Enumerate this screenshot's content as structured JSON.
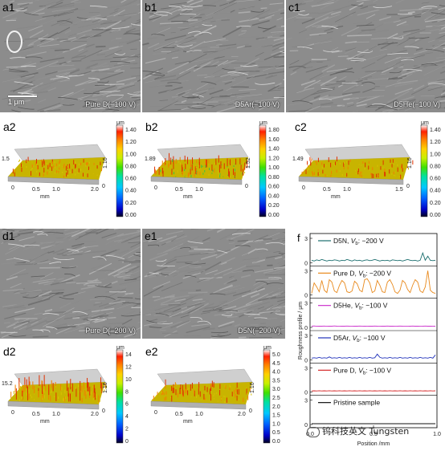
{
  "sem_panels": [
    {
      "id": "a1",
      "label": "a1",
      "caption": "Pure D(−100 V)",
      "scale": "1 μm"
    },
    {
      "id": "b1",
      "label": "b1",
      "caption": "D5Ar(−100 V)"
    },
    {
      "id": "c1",
      "label": "c1",
      "caption": "D5He(−100 V)"
    },
    {
      "id": "d1",
      "label": "d1",
      "caption": "Pure D(−200 V)"
    },
    {
      "id": "e1",
      "label": "e1",
      "caption": "D5N(−200 V)"
    }
  ],
  "maps": [
    {
      "id": "a2",
      "label": "a2",
      "height_label": "1.5",
      "axis_mm": "mm",
      "axis_x": [
        "0.5",
        "1.0",
        "2.0"
      ],
      "axis_y": "1.16",
      "axis_zero": "0",
      "axis_left_zero": "0",
      "cbar_unit": "μm",
      "cbar_ticks": [
        "1.40",
        "1.20",
        "1.00",
        "0.80",
        "0.60",
        "0.40",
        "0.20",
        "0.00"
      ]
    },
    {
      "id": "b2",
      "label": "b2",
      "height_label": "1.89",
      "axis_mm": "mm",
      "axis_x": [
        "0.5",
        "1.0"
      ],
      "axis_y": "1.52",
      "axis_zero": "0",
      "axis_left_zero": "0",
      "cbar_unit": "μm",
      "cbar_ticks": [
        "1.80",
        "1.60",
        "1.40",
        "1.20",
        "1.00",
        "0.80",
        "0.60",
        "0.40",
        "0.20",
        "0.00"
      ]
    },
    {
      "id": "c2",
      "label": "c2",
      "height_label": "1.49",
      "axis_mm": "mm",
      "axis_x": [
        "0.5",
        "1.0",
        "1.5"
      ],
      "axis_y": "1.16",
      "axis_zero": "0",
      "axis_left_zero": "0",
      "cbar_unit": "μm",
      "cbar_ticks": [
        "1.40",
        "1.20",
        "1.00",
        "0.80",
        "0.60",
        "0.40",
        "0.20",
        "0.00"
      ]
    },
    {
      "id": "d2",
      "label": "d2",
      "height_label": "15.2",
      "axis_mm": "mm",
      "axis_x": [
        "0.5",
        "1.0",
        "2.0"
      ],
      "axis_y": "1.16",
      "axis_zero": "0",
      "axis_left_zero": "0",
      "cbar_unit": "μm",
      "cbar_ticks": [
        "14",
        "12",
        "10",
        "8",
        "6",
        "4",
        "2",
        "0"
      ]
    },
    {
      "id": "e2",
      "label": "e2",
      "height_label": "",
      "axis_mm": "mm",
      "axis_x": [
        "0.5",
        "1.0",
        "2.0"
      ],
      "axis_y": "1.16",
      "axis_zero": "0",
      "axis_left_zero": "0",
      "cbar_unit": "μm",
      "cbar_ticks": [
        "5.0",
        "4.5",
        "4.0",
        "3.5",
        "3.0",
        "2.5",
        "2.0",
        "1.5",
        "1.0",
        "0.5",
        "0.0"
      ]
    }
  ],
  "chart_data": {
    "type": "line",
    "panel_label": "f",
    "xlabel": "Position /mm",
    "ylabel": "Roughness profile / μm",
    "xlim": [
      0,
      1.0
    ],
    "x_ticks": [
      "0.0",
      "0.5",
      "1.0"
    ],
    "y_ticks": [
      "0",
      "3"
    ],
    "series": [
      {
        "name": "D5N, Vb: −200 V",
        "label_main": "D5N, ",
        "label_v": "V",
        "label_sub": "b",
        "label_rest": ": −200 V",
        "color": "#1b6e6e",
        "ylim": [
          0,
          3
        ],
        "y": [
          0.3,
          0.2,
          0.35,
          0.25,
          0.4,
          0.3,
          0.2,
          0.3,
          0.25,
          0.35,
          0.3,
          0.2,
          0.3,
          0.25,
          0.4,
          0.3,
          0.2,
          0.35,
          0.25,
          0.3,
          0.2,
          0.3,
          0.35,
          0.25,
          0.3,
          0.4,
          0.3,
          0.2,
          0.3,
          0.25,
          0.3,
          0.2,
          0.35,
          0.3,
          0.25,
          0.3,
          0.2,
          0.3,
          0.4,
          0.3,
          0.25,
          0.3,
          0.2,
          0.3,
          1.2,
          0.3,
          0.8,
          0.3,
          0.25,
          0.3
        ]
      },
      {
        "name": "Pure D, Vb: −200 V",
        "label_main": "Pure D, ",
        "label_v": "V",
        "label_sub": "b",
        "label_rest": ": −200 V",
        "color": "#e8891c",
        "ylim": [
          0,
          3
        ],
        "y": [
          0.2,
          1.5,
          1.0,
          0.4,
          1.8,
          0.6,
          0.3,
          1.9,
          1.6,
          0.5,
          0.3,
          1.2,
          1.8,
          1.5,
          0.4,
          0.3,
          0.5,
          1.7,
          1.4,
          0.6,
          0.4,
          1.9,
          2.0,
          1.5,
          0.3,
          0.5,
          1.8,
          1.2,
          0.4,
          0.3,
          1.6,
          1.9,
          1.3,
          0.4,
          0.2,
          0.6,
          1.8,
          1.5,
          0.7,
          0.3,
          1.2,
          1.9,
          1.6,
          0.5,
          0.3,
          1.0,
          3.0,
          0.6,
          0.3,
          0.2
        ]
      },
      {
        "name": "D5He, Vb: −100 V",
        "label_main": "D5He, ",
        "label_v": "V",
        "label_sub": "b",
        "label_rest": ": −100 V",
        "color": "#cc33cc",
        "ylim": [
          0,
          3
        ],
        "y": [
          0.15,
          0.18,
          0.14,
          0.16,
          0.15,
          0.17,
          0.14,
          0.16,
          0.15,
          0.18,
          0.15,
          0.14,
          0.16,
          0.15,
          0.17,
          0.15,
          0.14,
          0.16,
          0.15,
          0.17,
          0.16,
          0.15,
          0.14,
          0.16,
          0.15,
          0.17,
          0.15,
          0.14,
          0.16,
          0.15,
          0.17,
          0.15,
          0.16,
          0.14,
          0.15,
          0.17,
          0.15,
          0.14,
          0.16,
          0.15,
          0.17,
          0.15,
          0.16,
          0.14,
          0.15,
          0.17,
          0.15,
          0.16,
          0.14,
          0.15
        ]
      },
      {
        "name": "D5Ar, Vb: −100 V",
        "label_main": "D5Ar, ",
        "label_v": "V",
        "label_sub": "b",
        "label_rest": ": −100 V",
        "color": "#2233bb",
        "ylim": [
          0,
          3
        ],
        "y": [
          0.2,
          0.25,
          0.2,
          0.3,
          0.2,
          0.25,
          0.2,
          0.35,
          0.2,
          0.25,
          0.2,
          0.3,
          0.2,
          0.25,
          0.2,
          0.3,
          0.2,
          0.25,
          0.2,
          0.3,
          0.2,
          0.25,
          0.2,
          0.3,
          0.2,
          0.25,
          0.7,
          0.3,
          0.2,
          0.25,
          0.2,
          0.3,
          0.2,
          0.25,
          0.2,
          0.3,
          0.2,
          0.25,
          0.2,
          0.3,
          0.2,
          0.25,
          0.2,
          0.3,
          0.2,
          0.25,
          0.2,
          0.3,
          0.2,
          0.6
        ]
      },
      {
        "name": "Pure D, Vb: −100 V",
        "label_main": "Pure D, ",
        "label_v": "V",
        "label_sub": "b",
        "label_rest": ": −100 V",
        "color": "#d62728",
        "ylim": [
          0,
          3
        ],
        "y": [
          0.15,
          0.16,
          0.15,
          0.17,
          0.15,
          0.16,
          0.15,
          0.17,
          0.15,
          0.16,
          0.15,
          0.17,
          0.15,
          0.16,
          0.15,
          0.17,
          0.15,
          0.16,
          0.15,
          0.17,
          0.15,
          0.16,
          0.15,
          0.17,
          0.15,
          0.16,
          0.15,
          0.17,
          0.15,
          0.16,
          0.15,
          0.17,
          0.15,
          0.16,
          0.15,
          0.17,
          0.15,
          0.16,
          0.15,
          0.17,
          0.15,
          0.16,
          0.15,
          0.17,
          0.15,
          0.16,
          0.15,
          0.17,
          0.15,
          0.16
        ]
      },
      {
        "name": "Pristine sample",
        "label_main": "Pristine sample",
        "label_v": "",
        "label_sub": "",
        "label_rest": "",
        "color": "#111111",
        "ylim": [
          0,
          3
        ],
        "y": [
          0.1,
          0.1,
          0.1,
          0.1,
          0.1,
          0.1,
          0.1,
          0.1,
          0.1,
          0.1,
          0.1,
          0.1,
          0.1,
          0.1,
          0.1,
          0.1,
          0.1,
          0.1,
          0.1,
          0.1,
          0.1,
          0.1,
          0.1,
          0.1,
          0.1,
          0.1,
          0.1,
          0.1,
          0.1,
          0.1,
          0.1,
          0.1,
          0.1,
          0.1,
          0.1,
          0.1,
          0.1,
          0.1,
          0.1,
          0.1,
          0.1,
          0.1,
          0.1,
          0.1,
          0.1,
          0.1,
          0.1,
          0.1,
          0.1,
          0.1
        ]
      }
    ]
  },
  "watermark": "钨科技英文 Tungsten"
}
